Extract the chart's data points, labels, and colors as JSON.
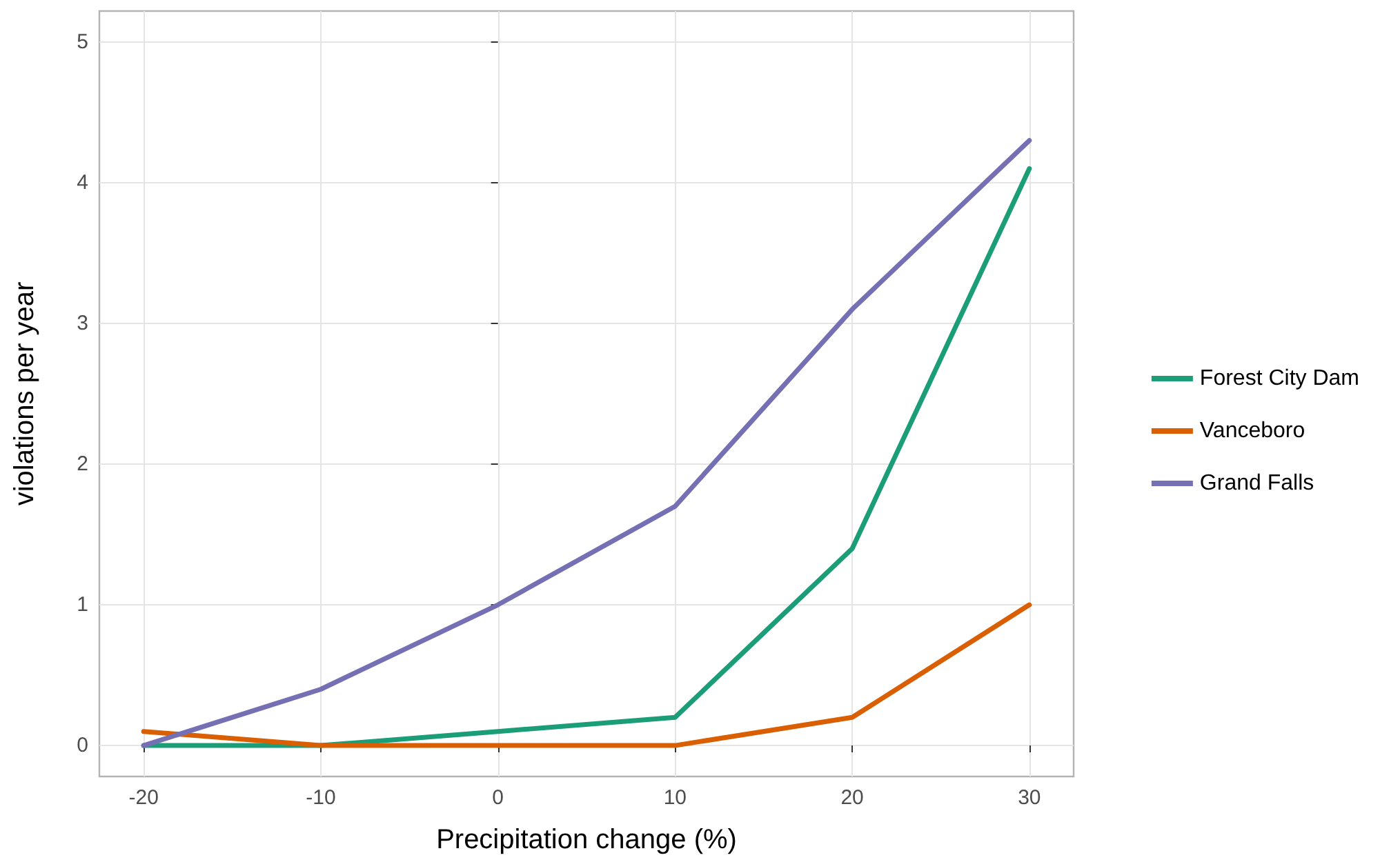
{
  "chart_data": {
    "type": "line",
    "xlabel": "Precipitation change (%)",
    "ylabel": "violations per year",
    "x": [
      -20,
      -10,
      0,
      10,
      20,
      30
    ],
    "series": [
      {
        "name": "Forest City Dam",
        "color": "#1b9e77",
        "values": [
          0,
          0,
          0.1,
          0.2,
          1.4,
          4.1
        ]
      },
      {
        "name": "Vanceboro",
        "color": "#d95f02",
        "values": [
          0.1,
          0,
          0,
          0,
          0.2,
          1.0
        ]
      },
      {
        "name": "Grand Falls",
        "color": "#7570b3",
        "values": [
          0,
          0.4,
          1.0,
          1.7,
          3.1,
          4.3
        ]
      }
    ],
    "xlim": [
      -22.5,
      32.5
    ],
    "xticks": [
      -20,
      -10,
      0,
      10,
      20,
      30
    ],
    "ylim": [
      -0.22,
      5.22
    ],
    "yticks": [
      0,
      1,
      2,
      3,
      4,
      5
    ],
    "grid": true,
    "legend": "right",
    "marker": "none",
    "line_style": "solid"
  }
}
